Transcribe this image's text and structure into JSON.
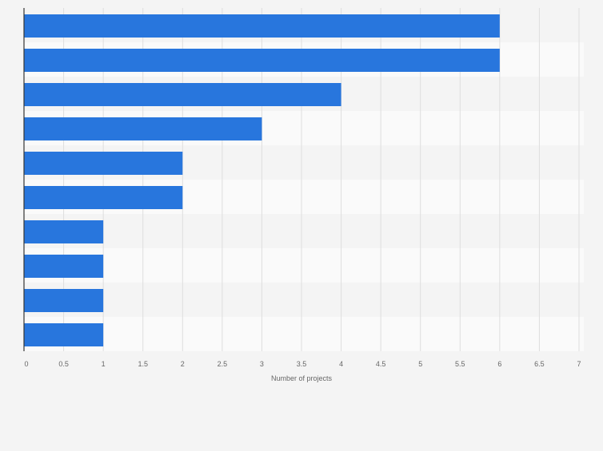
{
  "chart_data": {
    "type": "bar",
    "orientation": "horizontal",
    "categories": [
      "",
      "",
      "",
      "",
      "",
      "",
      "",
      "",
      "",
      ""
    ],
    "values": [
      6,
      6,
      4,
      3,
      2,
      2,
      1,
      1,
      1,
      1
    ],
    "title": "",
    "xlabel": "Number of projects",
    "ylabel": "",
    "xlim": [
      0,
      7
    ],
    "xticks": [
      "0",
      "0.5",
      "1",
      "1.5",
      "2",
      "2.5",
      "3",
      "3.5",
      "4",
      "4.5",
      "5",
      "5.5",
      "6",
      "6.5",
      "7"
    ],
    "grid": true,
    "bar_color": "#2876dd",
    "band_colors": [
      "#f4f4f4",
      "#fafafa"
    ],
    "gridline_color": "#dedede",
    "axis_color": "#333333",
    "tick_label_color": "#666666"
  }
}
